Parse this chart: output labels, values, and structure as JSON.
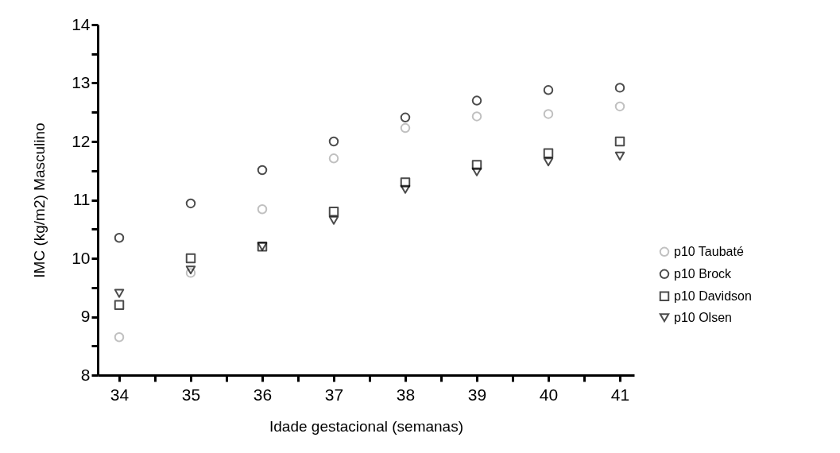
{
  "chart_data": {
    "type": "scatter",
    "xlabel": "Idade gestacional (semanas)",
    "ylabel": "IMC (kg/m2) Masculino",
    "x": [
      34,
      35,
      36,
      37,
      38,
      39,
      40,
      41
    ],
    "series": [
      {
        "name": "p10 Taubaté",
        "color": "#a6a6a6",
        "marker": "circle",
        "values": [
          8.65,
          9.75,
          10.84,
          11.71,
          12.23,
          12.43,
          12.47,
          12.6
        ]
      },
      {
        "name": "p10 Brock",
        "color": "#000000",
        "marker": "circle",
        "values": [
          10.35,
          10.94,
          11.51,
          12.0,
          12.41,
          12.7,
          12.88,
          12.92
        ]
      },
      {
        "name": "p10 Davidson",
        "color": "#000000",
        "marker": "square",
        "values": [
          9.2,
          10.0,
          10.2,
          10.8,
          11.3,
          11.6,
          11.8,
          12.0
        ]
      },
      {
        "name": "p10 Olsen",
        "color": "#000000",
        "marker": "triangle",
        "values": [
          9.4,
          9.8,
          10.2,
          10.65,
          11.18,
          11.48,
          11.65,
          11.75
        ]
      }
    ],
    "xlim": [
      33.7,
      41.2
    ],
    "xticks": [
      34,
      {
        "value": 34.5,
        "label": null
      },
      35,
      {
        "value": 35.5,
        "label": null
      },
      36,
      {
        "value": 36.5,
        "label": null
      },
      37,
      {
        "value": 37.5,
        "label": null
      },
      38,
      {
        "value": 38.5,
        "label": null
      },
      39,
      {
        "value": 39.5,
        "label": null
      },
      40,
      {
        "value": 40.5,
        "label": null
      },
      41
    ],
    "ylim": [
      8,
      14
    ],
    "yticks": [
      8,
      {
        "value": 8.5,
        "label": null
      },
      9,
      {
        "value": 9.5,
        "label": null
      },
      10,
      {
        "value": 10.5,
        "label": null
      },
      11,
      {
        "value": 11.5,
        "label": null
      },
      12,
      {
        "value": 12.5,
        "label": null
      },
      13,
      {
        "value": 13.5,
        "label": null
      },
      14
    ],
    "grid": false,
    "legend": "right"
  }
}
